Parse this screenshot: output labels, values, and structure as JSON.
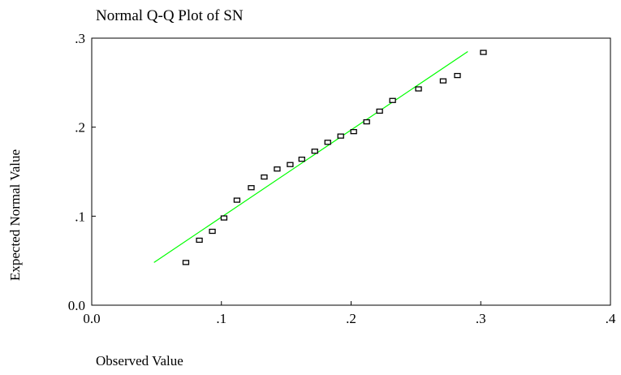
{
  "chart_data": {
    "type": "scatter",
    "title": "Normal Q-Q Plot of SN",
    "x_label": "Observed Value",
    "y_label": "Expected Normal Value",
    "x": [
      0.0726,
      0.083,
      0.093,
      0.102,
      0.112,
      0.123,
      0.133,
      0.143,
      0.153,
      0.162,
      0.172,
      0.182,
      0.192,
      0.202,
      0.212,
      0.222,
      0.232,
      0.252,
      0.271,
      0.282,
      0.302
    ],
    "values": [
      0.048,
      0.073,
      0.083,
      0.098,
      0.118,
      0.132,
      0.144,
      0.153,
      0.158,
      0.164,
      0.173,
      0.183,
      0.19,
      0.195,
      0.206,
      0.218,
      0.23,
      0.243,
      0.252,
      0.258,
      0.284
    ],
    "color": "#000000",
    "line": {
      "x": [
        0.048,
        0.29
      ],
      "y": [
        0.048,
        0.285
      ],
      "color": "#00ff00"
    },
    "xlim": [
      0,
      0.4
    ],
    "ylim": [
      0,
      0.3
    ],
    "xticks": [
      {
        "value": 0,
        "label": "0.0"
      },
      {
        "value": 0.1,
        "label": ".1"
      },
      {
        "value": 0.2,
        "label": ".2"
      },
      {
        "value": 0.3,
        "label": ".3"
      },
      {
        "value": 0.4,
        "label": ".4"
      }
    ],
    "yticks": [
      {
        "value": 0,
        "label": "0.0"
      },
      {
        "value": 0.1,
        "label": ".1"
      },
      {
        "value": 0.2,
        "label": ".2"
      },
      {
        "value": 0.3,
        "label": ".3"
      }
    ],
    "grid": false
  }
}
